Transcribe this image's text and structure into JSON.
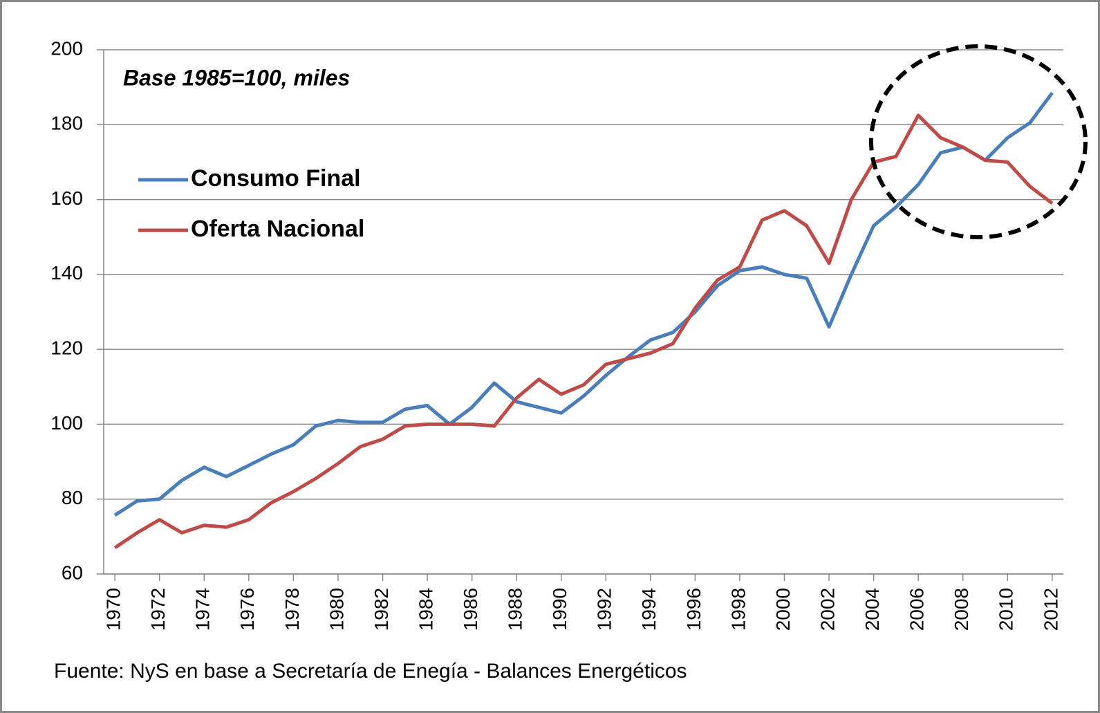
{
  "chart_data": {
    "type": "line",
    "annotation": "Base 1985=100, miles",
    "source": "Fuente: NyS en base a Secretaría de Enegía - Balances Energéticos",
    "x": [
      1970,
      1971,
      1972,
      1973,
      1974,
      1975,
      1976,
      1977,
      1978,
      1979,
      1980,
      1981,
      1982,
      1983,
      1984,
      1985,
      1986,
      1987,
      1988,
      1989,
      1990,
      1991,
      1992,
      1993,
      1994,
      1995,
      1996,
      1997,
      1998,
      1999,
      2000,
      2001,
      2002,
      2003,
      2004,
      2005,
      2006,
      2007,
      2008,
      2009,
      2010,
      2011,
      2012
    ],
    "series": [
      {
        "name": "Consumo Final",
        "color": "#4a7ebb",
        "values": [
          75.7,
          79.5,
          80,
          85,
          88.5,
          86,
          89,
          92,
          94.5,
          99.5,
          101,
          100.5,
          100.5,
          104,
          105,
          100,
          104.5,
          111,
          106,
          104.5,
          103,
          107.5,
          113,
          118,
          122.5,
          124.5,
          130,
          137,
          141,
          142,
          140,
          139,
          126,
          140,
          153,
          158,
          164,
          172.5,
          174,
          170.5,
          176.5,
          180.5,
          188.5
        ]
      },
      {
        "name": "Oferta Nacional",
        "color": "#be4b48",
        "values": [
          67,
          71,
          74.5,
          71,
          73,
          72.5,
          74.5,
          79,
          82,
          85.5,
          89.5,
          94,
          96,
          99.5,
          100,
          100,
          100,
          99.5,
          107,
          112,
          108,
          110.5,
          116,
          117.5,
          119,
          121.5,
          131,
          138.5,
          142,
          154.5,
          157,
          153,
          143,
          160,
          170,
          171.5,
          182.5,
          176.5,
          174,
          170.5,
          170,
          163.5,
          159
        ]
      }
    ],
    "xlim": [
      1969.5,
      2012.5
    ],
    "xticks": [
      1970,
      1972,
      1974,
      1976,
      1978,
      1980,
      1982,
      1984,
      1986,
      1988,
      1990,
      1992,
      1994,
      1996,
      1998,
      2000,
      2002,
      2004,
      2006,
      2008,
      2010,
      2012
    ],
    "ylim": [
      60,
      200
    ],
    "yticks": [
      60,
      80,
      100,
      120,
      140,
      160,
      180,
      200
    ],
    "grid": true,
    "legend": "upper left"
  }
}
